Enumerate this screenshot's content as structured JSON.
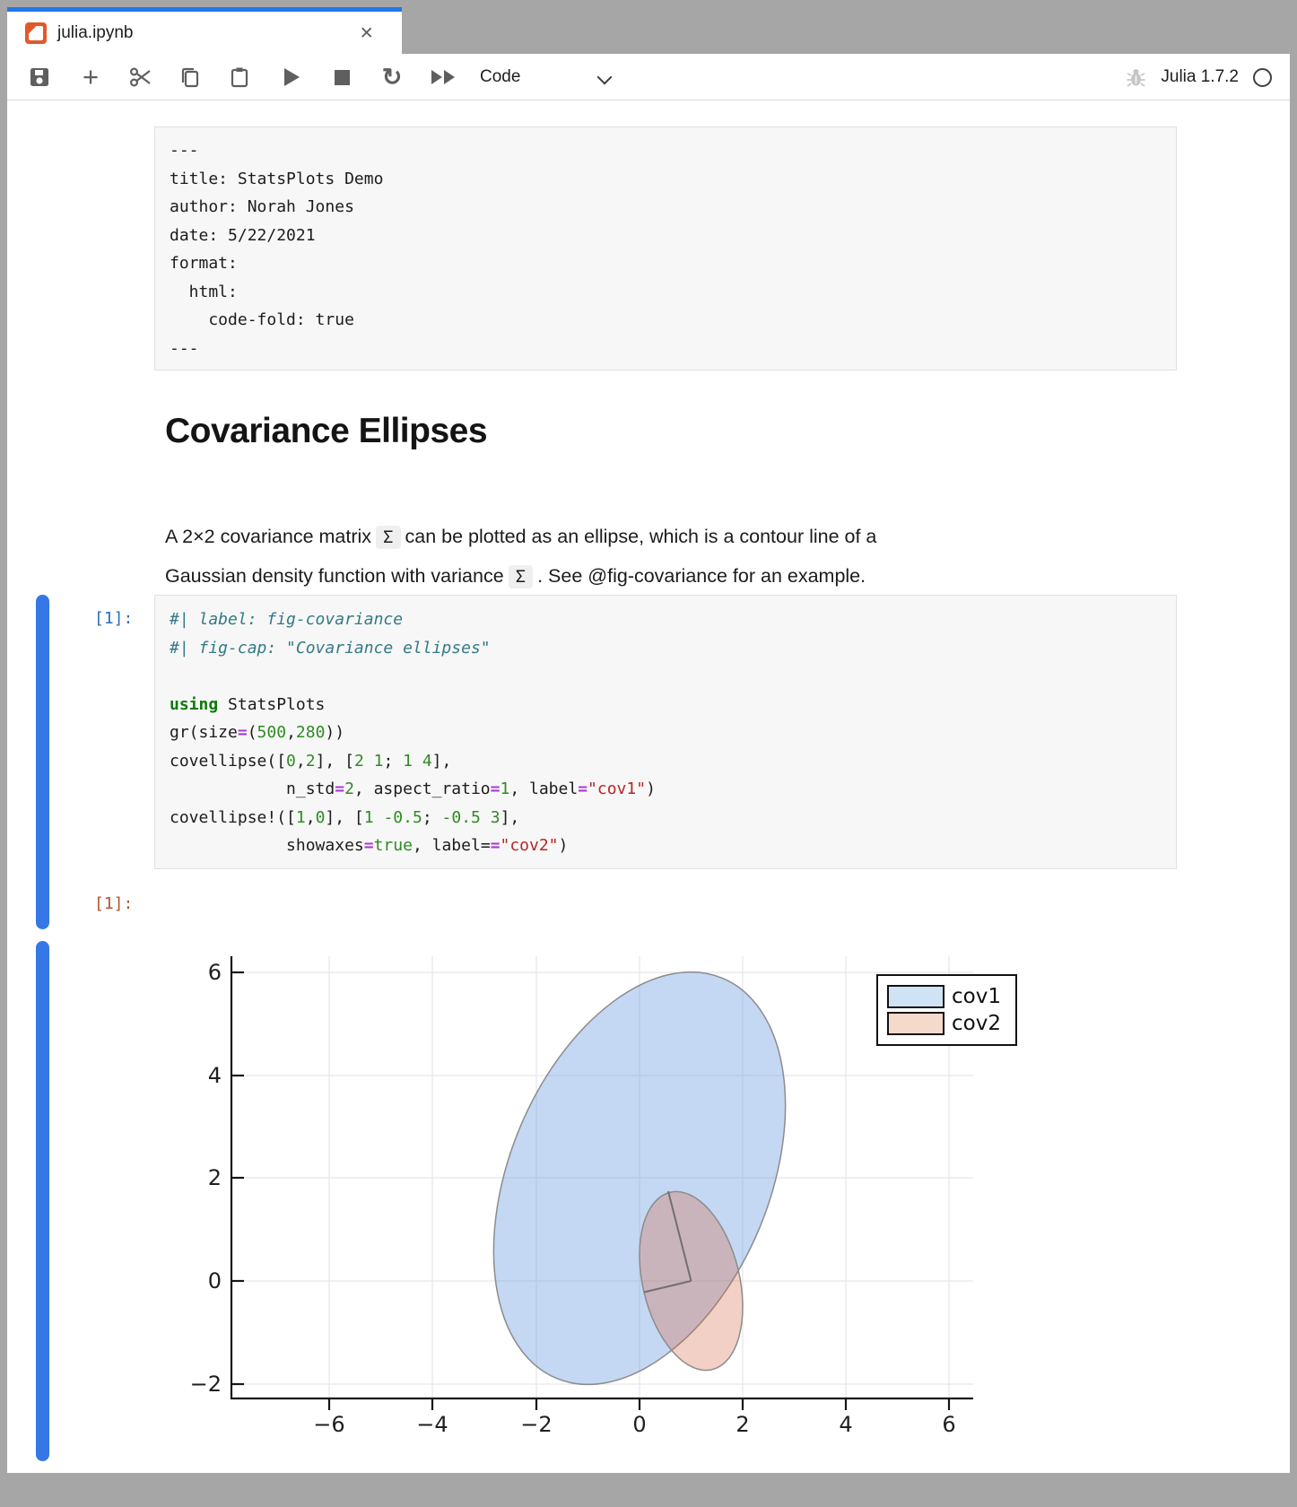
{
  "tab": {
    "title": "julia.ipynb",
    "close": "×"
  },
  "toolbar": {
    "mode_select": "Code",
    "kernel_name": "Julia 1.7.2",
    "icons": [
      "save-icon",
      "add-cell-icon",
      "cut-icon",
      "copy-icon",
      "paste-icon",
      "run-icon",
      "stop-icon",
      "restart-icon",
      "run-all-icon",
      "bug-icon",
      "kernel-status-circle"
    ]
  },
  "yaml_cell": {
    "lines": [
      "---",
      "title: StatsPlots Demo",
      "author: Norah Jones",
      "date: 5/22/2021",
      "format:",
      "  html:",
      "    code-fold: true",
      "---"
    ]
  },
  "markdown": {
    "heading": "Covariance Ellipses",
    "paragraph": [
      [
        {
          "t": "A 2×2 covariance matrix"
        },
        {
          "t": "Σ",
          "c": "chip"
        },
        {
          "t": "can be plotted as an ellipse, which is a contour line of a"
        }
      ],
      [
        {
          "t": "Gaussian density function with variance"
        },
        {
          "t": "Σ",
          "c": "chip"
        },
        {
          "t": ". See @fig-covariance for an example."
        }
      ]
    ]
  },
  "code_cell": {
    "label": "[1]:",
    "lines": [
      [
        {
          "t": "#| label: fig-covariance",
          "c": "cm"
        }
      ],
      [
        {
          "t": "#| fig-cap: \"Covariance ellipses\"",
          "c": "cm"
        }
      ],
      [
        {
          "t": " "
        }
      ],
      [
        {
          "t": "using",
          "c": "kw"
        },
        {
          "t": " StatsPlots"
        }
      ],
      [
        {
          "t": "gr(size"
        },
        {
          "t": "=",
          "c": "op"
        },
        {
          "t": "("
        },
        {
          "t": "500",
          "c": "num"
        },
        {
          "t": ","
        },
        {
          "t": "280",
          "c": "num"
        },
        {
          "t": "))"
        }
      ],
      [
        {
          "t": "covellipse(["
        },
        {
          "t": "0",
          "c": "num"
        },
        {
          "t": ","
        },
        {
          "t": "2",
          "c": "num"
        },
        {
          "t": "], ["
        },
        {
          "t": "2 1",
          "c": "num"
        },
        {
          "t": "; "
        },
        {
          "t": "1 4",
          "c": "num"
        },
        {
          "t": "],"
        }
      ],
      [
        {
          "t": "            n_std"
        },
        {
          "t": "=",
          "c": "op"
        },
        {
          "t": "2",
          "c": "num"
        },
        {
          "t": ", aspect_ratio"
        },
        {
          "t": "=",
          "c": "op"
        },
        {
          "t": "1",
          "c": "num"
        },
        {
          "t": ", label"
        },
        {
          "t": "=",
          "c": "op"
        },
        {
          "t": "\"cov1\"",
          "c": "str"
        },
        {
          "t": ")"
        }
      ],
      [
        {
          "t": "covellipse!(["
        },
        {
          "t": "1",
          "c": "num"
        },
        {
          "t": ","
        },
        {
          "t": "0",
          "c": "num"
        },
        {
          "t": "], ["
        },
        {
          "t": "1",
          "c": "num"
        },
        {
          "t": " "
        },
        {
          "t": "-0.5",
          "c": "num"
        },
        {
          "t": "; "
        },
        {
          "t": "-0.5",
          "c": "num"
        },
        {
          "t": " "
        },
        {
          "t": "3",
          "c": "num"
        },
        {
          "t": "],"
        }
      ],
      [
        {
          "t": "            showaxes"
        },
        {
          "t": "=",
          "c": "op"
        },
        {
          "t": "true",
          "c": "num"
        },
        {
          "t": ", label"
        },
        {
          "t": "=",
          "op": ""
        },
        {
          "t": "=",
          "c": "op"
        },
        {
          "t": "\"cov2\"",
          "c": "str"
        },
        {
          "t": ")"
        }
      ]
    ]
  },
  "output_cell": {
    "label": "[1]:"
  },
  "chart_data": {
    "type": "area",
    "description": "Covariance ellipses drawn with StatsPlots covellipse (GR backend)",
    "series": [
      {
        "name": "cov1",
        "mean": [
          0,
          2
        ],
        "cov": [
          [
            2,
            1
          ],
          [
            1,
            4
          ]
        ],
        "n_std": 2,
        "fill": "#c8def5",
        "stroke": "#8c8c8c"
      },
      {
        "name": "cov2",
        "mean": [
          1,
          0
        ],
        "cov": [
          [
            1,
            -0.5
          ],
          [
            -0.5,
            3
          ]
        ],
        "n_std": 1,
        "fill": "#f2d5c6",
        "stroke": "#8c8c8c",
        "showaxes": true
      }
    ],
    "xticks": [
      "−6",
      "−4",
      "−2",
      "0",
      "2",
      "4",
      "6"
    ],
    "yticks": [
      "6",
      "4",
      "2",
      "0",
      "−2"
    ],
    "xtick_values": [
      -6,
      -4,
      -2,
      0,
      2,
      4,
      6
    ],
    "ytick_values": [
      6,
      4,
      2,
      0,
      -2
    ],
    "xlim": [
      -7.9,
      6.5
    ],
    "ylim": [
      -2.3,
      6.35
    ],
    "grid": true,
    "legend": {
      "position": "top-right",
      "entries": [
        "cov1",
        "cov2"
      ]
    }
  }
}
